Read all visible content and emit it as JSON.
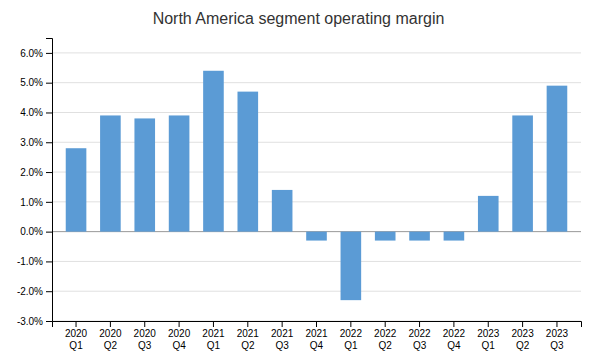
{
  "chart_data": {
    "type": "bar",
    "title": "North America segment operating margin",
    "categories": [
      "2020\nQ1",
      "2020\nQ2",
      "2020\nQ3",
      "2020\nQ4",
      "2021\nQ1",
      "2021\nQ2",
      "2021\nQ3",
      "2021\nQ4",
      "2022\nQ1",
      "2022\nQ2",
      "2022\nQ3",
      "2022\nQ4",
      "2023\nQ1",
      "2023\nQ2",
      "2023\nQ3"
    ],
    "values": [
      0.028,
      0.039,
      0.038,
      0.039,
      0.054,
      0.047,
      0.014,
      -0.003,
      -0.023,
      -0.003,
      -0.003,
      -0.003,
      0.012,
      0.039,
      0.049
    ],
    "color": "#5B9BD5",
    "ylim": [
      -0.03,
      0.065
    ],
    "yticks": [
      {
        "value": -0.03,
        "label": "-3.0%"
      },
      {
        "value": -0.02,
        "label": "-2.0%"
      },
      {
        "value": -0.01,
        "label": "-1.0%"
      },
      {
        "value": 0.0,
        "label": "0.0%"
      },
      {
        "value": 0.01,
        "label": "1.0%"
      },
      {
        "value": 0.02,
        "label": "2.0%"
      },
      {
        "value": 0.03,
        "label": "3.0%"
      },
      {
        "value": 0.04,
        "label": "4.0%"
      },
      {
        "value": 0.05,
        "label": "5.0%"
      },
      {
        "value": 0.06,
        "label": "6.0%"
      }
    ],
    "grid": true
  }
}
